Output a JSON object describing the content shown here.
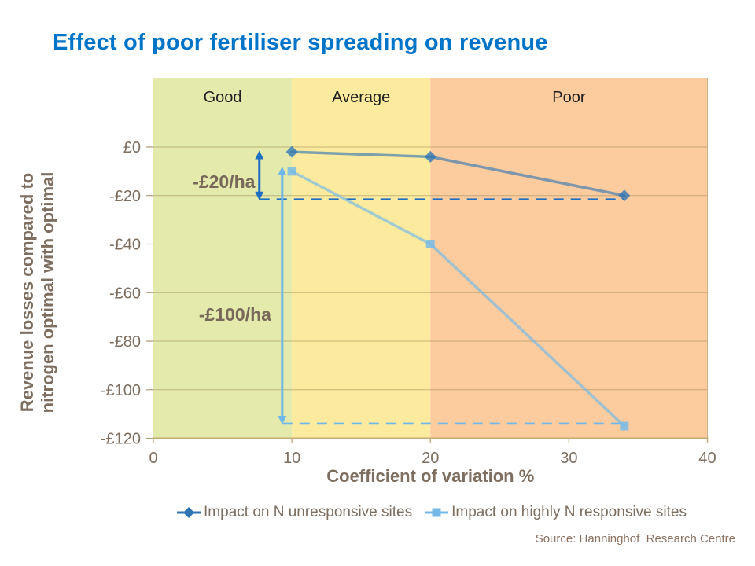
{
  "page": {
    "source_text": "Source: Hanninghof  Research Centre"
  },
  "colors": {
    "title": "#0074C8",
    "axis_text": "#7D6E60",
    "band_label_text": "#1f1f1f",
    "annotation_text": "#77685A",
    "grid": "#9A8655",
    "axis_line": "#C2AB77",
    "source_text": "#8A7161",
    "series1": "#2E74B5",
    "series2": "#74B9E7",
    "arrow_dark": "#1E6FC4",
    "arrow_light": "#6FB7EA"
  },
  "chart_data": {
    "type": "line",
    "title": "Effect of poor fertiliser spreading on revenue",
    "xlabel": "Coefficient of variation %",
    "ylabel_lines": [
      "Revenue losses compared to",
      "nitrogen optimal with optimal"
    ],
    "xlim": [
      0,
      40
    ],
    "ylim": [
      -120,
      28
    ],
    "grid": "horizontal",
    "legend_position": "bottom",
    "xticks": [
      0,
      10,
      20,
      30,
      40
    ],
    "yticks": [
      {
        "v": 0,
        "label": "£0"
      },
      {
        "v": -20,
        "label": "-£20"
      },
      {
        "v": -40,
        "label": "-£40"
      },
      {
        "v": -60,
        "label": "-£60"
      },
      {
        "v": -80,
        "label": "-£80"
      },
      {
        "v": -100,
        "label": "-£100"
      },
      {
        "v": -120,
        "label": "-£120"
      }
    ],
    "bands": [
      {
        "label": "Good",
        "from": 0,
        "to": 10,
        "color": "#E3EAAC"
      },
      {
        "label": "Average",
        "from": 10,
        "to": 20,
        "color": "#FCEB9E"
      },
      {
        "label": "Poor",
        "from": 20,
        "to": 40,
        "color": "#FCCC9F"
      }
    ],
    "series": [
      {
        "name": "Impact on N unresponsive sites",
        "marker": "diamond",
        "color": "#2E74B5",
        "line_opacity": 0.62,
        "marker_opacity": 0.78,
        "x": [
          10,
          20,
          34
        ],
        "y": [
          -2,
          -4,
          -20
        ]
      },
      {
        "name": "Impact on highly N responsive sites",
        "marker": "square",
        "color": "#74B9E7",
        "line_opacity": 0.68,
        "marker_opacity": 0.82,
        "x": [
          10,
          20,
          34
        ],
        "y": [
          -10,
          -40,
          -115
        ]
      }
    ],
    "annotations": {
      "arrows": [
        {
          "name": "loss-20-arrow",
          "x": 7.65,
          "v_from": -1.8,
          "v_to": -21.6,
          "color": "#1E6FC4"
        },
        {
          "name": "loss-100-arrow",
          "x": 9.3,
          "v_from": -8.4,
          "v_to": -114,
          "color": "#6FB7EA"
        }
      ],
      "dashed_lines": [
        {
          "name": "loss-20-dashed",
          "v": -21.6,
          "x_from": 7.65,
          "x_to": 34,
          "color": "#1E6FC4"
        },
        {
          "name": "loss-100-dashed",
          "v": -114,
          "x_from": 9.3,
          "x_to": 34,
          "color": "#6FB7EA"
        }
      ],
      "labels": [
        {
          "text": "-£20/ha",
          "x": 5.1,
          "v": -14.3
        },
        {
          "text": "-£100/ha",
          "x": 5.9,
          "v": -69
        }
      ]
    }
  }
}
